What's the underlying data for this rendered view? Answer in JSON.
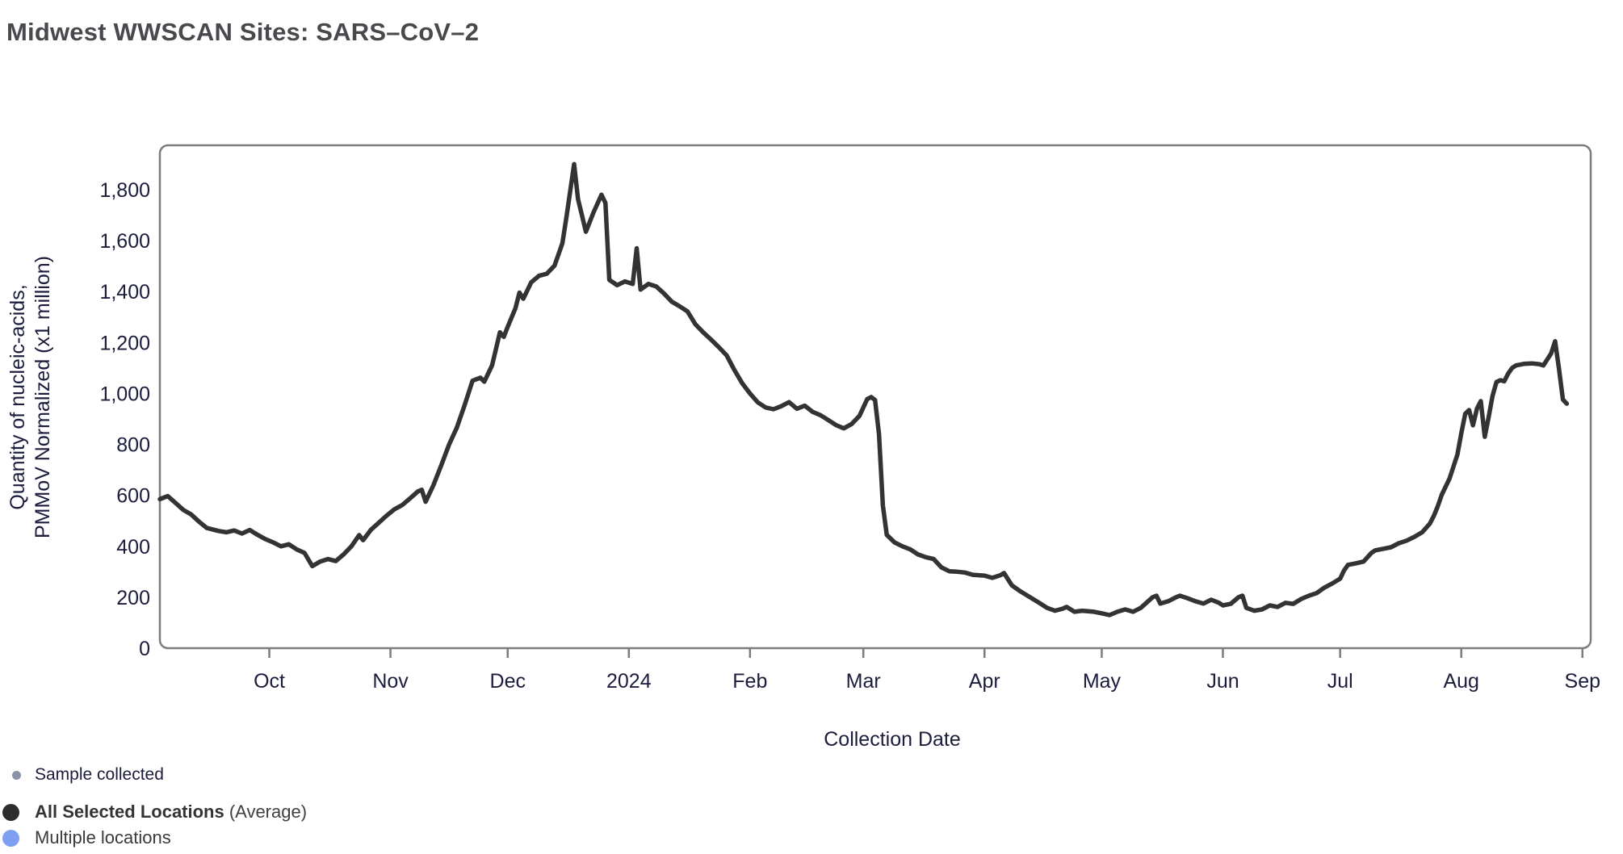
{
  "page": {
    "title": "Midwest WWSCAN Sites: SARS–CoV–2"
  },
  "colors": {
    "background": "#ffffff",
    "title_text": "#49494d",
    "axis_text": "#1c1c3c",
    "frame": "#7d7d7d",
    "series_line": "#333336",
    "legend_sample_dot": "#8b93a6",
    "legend_all_locations_dot": "#2d2d2e",
    "legend_multiple_locations_dot": "#7f9ff2"
  },
  "legend": {
    "items": [
      {
        "id": "sample-collected",
        "label": "Sample collected",
        "color": "#8b93a6",
        "size": "small"
      },
      {
        "id": "all-selected-locations",
        "label": "All Selected Locations",
        "suffix": " (Average)",
        "color": "#2d2d2e",
        "size": "big"
      },
      {
        "id": "multiple-locations",
        "label": "Multiple locations",
        "suffix": "",
        "color": "#7f9ff2",
        "size": "big"
      }
    ]
  },
  "chart_data": {
    "type": "line",
    "title": "Midwest WWSCAN Sites: SARS–CoV–2",
    "xlabel": "Collection Date",
    "ylabel_line1": "Quantity of nucleic-acids,",
    "ylabel_line2": "PMMoV Normalized (x1 million)",
    "x_domain": [
      "2023-09-03",
      "2024-09-03"
    ],
    "ylim": [
      0,
      2000
    ],
    "grid": false,
    "legend_position": "bottom-left",
    "y_ticks": [
      {
        "value": 0,
        "label": "0"
      },
      {
        "value": 200,
        "label": "200"
      },
      {
        "value": 400,
        "label": "400"
      },
      {
        "value": 600,
        "label": "600"
      },
      {
        "value": 800,
        "label": "800"
      },
      {
        "value": 1000,
        "label": "1,000"
      },
      {
        "value": 1200,
        "label": "1,200"
      },
      {
        "value": 1400,
        "label": "1,400"
      },
      {
        "value": 1600,
        "label": "1,600"
      },
      {
        "value": 1800,
        "label": "1,800"
      }
    ],
    "x_ticks": [
      {
        "date": "2023-10-01",
        "label": "Oct"
      },
      {
        "date": "2023-11-01",
        "label": "Nov"
      },
      {
        "date": "2023-12-01",
        "label": "Dec"
      },
      {
        "date": "2024-01-01",
        "label": "2024"
      },
      {
        "date": "2024-02-01",
        "label": "Feb"
      },
      {
        "date": "2024-03-01",
        "label": "Mar"
      },
      {
        "date": "2024-04-01",
        "label": "Apr"
      },
      {
        "date": "2024-05-01",
        "label": "May"
      },
      {
        "date": "2024-06-01",
        "label": "Jun"
      },
      {
        "date": "2024-07-01",
        "label": "Jul"
      },
      {
        "date": "2024-08-01",
        "label": "Aug"
      },
      {
        "date": "2024-09-01",
        "label": "Sep"
      }
    ],
    "series": [
      {
        "name": "All Selected Locations (Average)",
        "color": "#333336",
        "points": [
          [
            "2023-09-03",
            585
          ],
          [
            "2023-09-05",
            597
          ],
          [
            "2023-09-07",
            570
          ],
          [
            "2023-09-09",
            543
          ],
          [
            "2023-09-11",
            525
          ],
          [
            "2023-09-13",
            497
          ],
          [
            "2023-09-15",
            472
          ],
          [
            "2023-09-18",
            460
          ],
          [
            "2023-09-20",
            455
          ],
          [
            "2023-09-22",
            462
          ],
          [
            "2023-09-24",
            450
          ],
          [
            "2023-09-26",
            464
          ],
          [
            "2023-09-28",
            445
          ],
          [
            "2023-09-30",
            428
          ],
          [
            "2023-10-02",
            415
          ],
          [
            "2023-10-04",
            400
          ],
          [
            "2023-10-06",
            408
          ],
          [
            "2023-10-08",
            388
          ],
          [
            "2023-10-10",
            374
          ],
          [
            "2023-10-12",
            322
          ],
          [
            "2023-10-14",
            340
          ],
          [
            "2023-10-16",
            350
          ],
          [
            "2023-10-18",
            342
          ],
          [
            "2023-10-20",
            368
          ],
          [
            "2023-10-22",
            400
          ],
          [
            "2023-10-24",
            444
          ],
          [
            "2023-10-25",
            424
          ],
          [
            "2023-10-27",
            465
          ],
          [
            "2023-10-29",
            492
          ],
          [
            "2023-10-31",
            520
          ],
          [
            "2023-11-02",
            545
          ],
          [
            "2023-11-04",
            562
          ],
          [
            "2023-11-06",
            588
          ],
          [
            "2023-11-08",
            615
          ],
          [
            "2023-11-09",
            622
          ],
          [
            "2023-11-10",
            575
          ],
          [
            "2023-11-12",
            640
          ],
          [
            "2023-11-14",
            718
          ],
          [
            "2023-11-16",
            800
          ],
          [
            "2023-11-18",
            866
          ],
          [
            "2023-11-20",
            955
          ],
          [
            "2023-11-22",
            1050
          ],
          [
            "2023-11-24",
            1062
          ],
          [
            "2023-11-25",
            1046
          ],
          [
            "2023-11-27",
            1110
          ],
          [
            "2023-11-29",
            1240
          ],
          [
            "2023-11-30",
            1222
          ],
          [
            "2023-12-01",
            1262
          ],
          [
            "2023-12-03",
            1335
          ],
          [
            "2023-12-04",
            1396
          ],
          [
            "2023-12-05",
            1372
          ],
          [
            "2023-12-07",
            1436
          ],
          [
            "2023-12-09",
            1462
          ],
          [
            "2023-12-11",
            1470
          ],
          [
            "2023-12-13",
            1502
          ],
          [
            "2023-12-15",
            1590
          ],
          [
            "2023-12-16",
            1690
          ],
          [
            "2023-12-18",
            1900
          ],
          [
            "2023-12-19",
            1762
          ],
          [
            "2023-12-20",
            1700
          ],
          [
            "2023-12-21",
            1635
          ],
          [
            "2023-12-23",
            1712
          ],
          [
            "2023-12-25",
            1780
          ],
          [
            "2023-12-26",
            1748
          ],
          [
            "2023-12-27",
            1446
          ],
          [
            "2023-12-29",
            1425
          ],
          [
            "2023-12-31",
            1440
          ],
          [
            "2024-01-02",
            1430
          ],
          [
            "2024-01-03",
            1570
          ],
          [
            "2024-01-04",
            1408
          ],
          [
            "2024-01-06",
            1430
          ],
          [
            "2024-01-08",
            1420
          ],
          [
            "2024-01-10",
            1392
          ],
          [
            "2024-01-12",
            1360
          ],
          [
            "2024-01-14",
            1342
          ],
          [
            "2024-01-16",
            1322
          ],
          [
            "2024-01-18",
            1272
          ],
          [
            "2024-01-20",
            1240
          ],
          [
            "2024-01-22",
            1212
          ],
          [
            "2024-01-24",
            1182
          ],
          [
            "2024-01-26",
            1150
          ],
          [
            "2024-01-28",
            1092
          ],
          [
            "2024-01-30",
            1040
          ],
          [
            "2024-02-01",
            1000
          ],
          [
            "2024-02-03",
            965
          ],
          [
            "2024-02-05",
            945
          ],
          [
            "2024-02-07",
            938
          ],
          [
            "2024-02-09",
            950
          ],
          [
            "2024-02-11",
            966
          ],
          [
            "2024-02-13",
            940
          ],
          [
            "2024-02-15",
            952
          ],
          [
            "2024-02-17",
            928
          ],
          [
            "2024-02-19",
            915
          ],
          [
            "2024-02-21",
            896
          ],
          [
            "2024-02-23",
            876
          ],
          [
            "2024-02-25",
            863
          ],
          [
            "2024-02-27",
            880
          ],
          [
            "2024-02-29",
            912
          ],
          [
            "2024-03-02",
            978
          ],
          [
            "2024-03-03",
            986
          ],
          [
            "2024-03-04",
            974
          ],
          [
            "2024-03-05",
            840
          ],
          [
            "2024-03-06",
            560
          ],
          [
            "2024-03-07",
            445
          ],
          [
            "2024-03-09",
            415
          ],
          [
            "2024-03-11",
            400
          ],
          [
            "2024-03-13",
            388
          ],
          [
            "2024-03-15",
            368
          ],
          [
            "2024-03-17",
            357
          ],
          [
            "2024-03-19",
            350
          ],
          [
            "2024-03-21",
            317
          ],
          [
            "2024-03-23",
            302
          ],
          [
            "2024-03-25",
            300
          ],
          [
            "2024-03-27",
            297
          ],
          [
            "2024-03-29",
            288
          ],
          [
            "2024-04-01",
            285
          ],
          [
            "2024-04-03",
            276
          ],
          [
            "2024-04-05",
            286
          ],
          [
            "2024-04-06",
            295
          ],
          [
            "2024-04-08",
            247
          ],
          [
            "2024-04-10",
            225
          ],
          [
            "2024-04-12",
            206
          ],
          [
            "2024-04-15",
            178
          ],
          [
            "2024-04-17",
            158
          ],
          [
            "2024-04-19",
            147
          ],
          [
            "2024-04-21",
            155
          ],
          [
            "2024-04-22",
            162
          ],
          [
            "2024-04-24",
            143
          ],
          [
            "2024-04-26",
            147
          ],
          [
            "2024-04-29",
            143
          ],
          [
            "2024-05-01",
            137
          ],
          [
            "2024-05-03",
            130
          ],
          [
            "2024-05-05",
            143
          ],
          [
            "2024-05-07",
            152
          ],
          [
            "2024-05-09",
            143
          ],
          [
            "2024-05-11",
            158
          ],
          [
            "2024-05-14",
            200
          ],
          [
            "2024-05-15",
            206
          ],
          [
            "2024-05-16",
            175
          ],
          [
            "2024-05-18",
            184
          ],
          [
            "2024-05-20",
            200
          ],
          [
            "2024-05-21",
            206
          ],
          [
            "2024-05-23",
            196
          ],
          [
            "2024-05-25",
            184
          ],
          [
            "2024-05-27",
            175
          ],
          [
            "2024-05-29",
            190
          ],
          [
            "2024-05-31",
            178
          ],
          [
            "2024-06-01",
            168
          ],
          [
            "2024-06-03",
            174
          ],
          [
            "2024-06-05",
            200
          ],
          [
            "2024-06-06",
            206
          ],
          [
            "2024-06-07",
            158
          ],
          [
            "2024-06-09",
            147
          ],
          [
            "2024-06-11",
            152
          ],
          [
            "2024-06-13",
            168
          ],
          [
            "2024-06-15",
            162
          ],
          [
            "2024-06-17",
            178
          ],
          [
            "2024-06-19",
            174
          ],
          [
            "2024-06-21",
            193
          ],
          [
            "2024-06-23",
            206
          ],
          [
            "2024-06-25",
            216
          ],
          [
            "2024-06-27",
            238
          ],
          [
            "2024-06-29",
            254
          ],
          [
            "2024-07-01",
            273
          ],
          [
            "2024-07-02",
            305
          ],
          [
            "2024-07-03",
            327
          ],
          [
            "2024-07-05",
            333
          ],
          [
            "2024-07-07",
            340
          ],
          [
            "2024-07-09",
            374
          ],
          [
            "2024-07-10",
            384
          ],
          [
            "2024-07-12",
            390
          ],
          [
            "2024-07-14",
            396
          ],
          [
            "2024-07-16",
            412
          ],
          [
            "2024-07-18",
            422
          ],
          [
            "2024-07-20",
            437
          ],
          [
            "2024-07-22",
            455
          ],
          [
            "2024-07-24",
            490
          ],
          [
            "2024-07-25",
            520
          ],
          [
            "2024-07-26",
            558
          ],
          [
            "2024-07-27",
            602
          ],
          [
            "2024-07-29",
            666
          ],
          [
            "2024-07-31",
            760
          ],
          [
            "2024-08-01",
            843
          ],
          [
            "2024-08-02",
            920
          ],
          [
            "2024-08-03",
            935
          ],
          [
            "2024-08-04",
            875
          ],
          [
            "2024-08-05",
            940
          ],
          [
            "2024-08-06",
            970
          ],
          [
            "2024-08-07",
            830
          ],
          [
            "2024-08-08",
            907
          ],
          [
            "2024-08-09",
            990
          ],
          [
            "2024-08-10",
            1045
          ],
          [
            "2024-08-11",
            1052
          ],
          [
            "2024-08-12",
            1048
          ],
          [
            "2024-08-13",
            1078
          ],
          [
            "2024-08-14",
            1100
          ],
          [
            "2024-08-15",
            1110
          ],
          [
            "2024-08-17",
            1116
          ],
          [
            "2024-08-19",
            1118
          ],
          [
            "2024-08-21",
            1115
          ],
          [
            "2024-08-22",
            1110
          ],
          [
            "2024-08-24",
            1157
          ],
          [
            "2024-08-25",
            1205
          ],
          [
            "2024-08-26",
            1097
          ],
          [
            "2024-08-27",
            976
          ],
          [
            "2024-08-28",
            960
          ]
        ]
      }
    ]
  }
}
